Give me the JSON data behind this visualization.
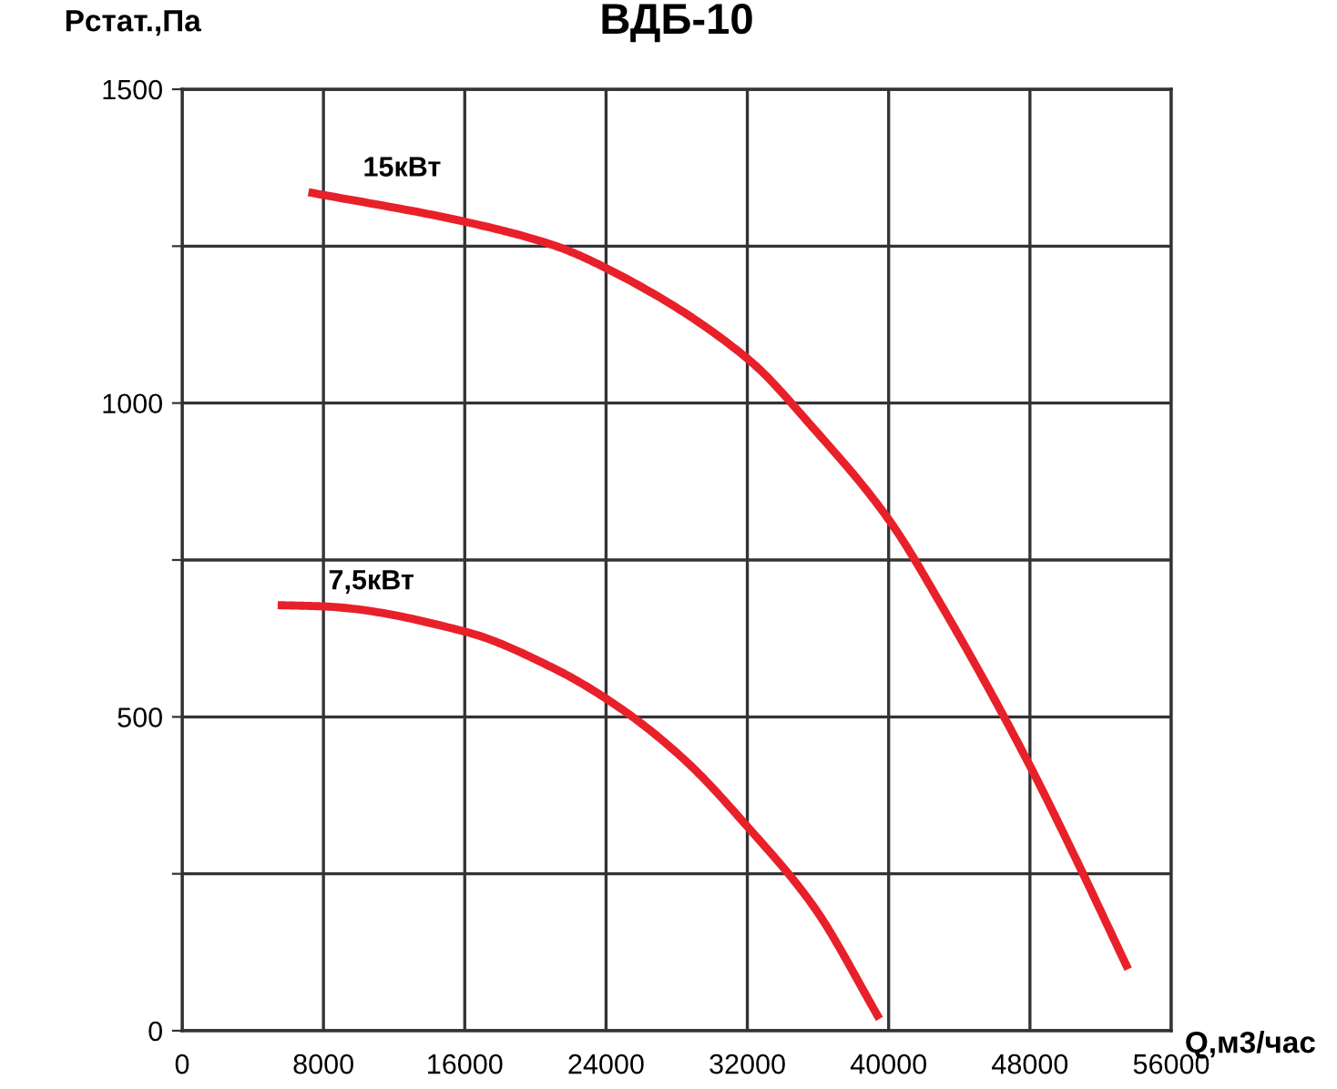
{
  "chart_data": {
    "type": "line",
    "title": "ВДБ-10",
    "xlabel": "Q,м3/час",
    "ylabel": "Pстат.,Па",
    "xlim": [
      0,
      56000
    ],
    "ylim": [
      0,
      1500
    ],
    "xticks": [
      0,
      8000,
      16000,
      24000,
      32000,
      40000,
      48000,
      56000
    ],
    "yticks": [
      0,
      {
        "value": 250,
        "label": null
      },
      500,
      {
        "value": 750,
        "label": null
      },
      1000,
      {
        "value": 1250,
        "label": null
      },
      1500
    ],
    "grid": true,
    "line_style": "solid",
    "marker": "none",
    "series": [
      {
        "name": "15кВт",
        "color": "#e8202a",
        "x": [
          7150,
          16000,
          21070,
          24000,
          32000,
          35800,
          40040,
          43170,
          48000,
          50530,
          53560
        ],
        "values": [
          1336,
          1289,
          1251,
          1215,
          1071,
          958,
          813,
          669,
          422,
          278,
          98
        ]
      },
      {
        "name": "7,5кВт",
        "color": "#e8202a",
        "x": [
          5410,
          8030,
          16000,
          21070,
          24750,
          28430,
          32040,
          35800,
          39480
        ],
        "values": [
          678,
          676,
          636,
          577,
          515,
          432,
          324,
          196,
          19
        ]
      }
    ]
  }
}
